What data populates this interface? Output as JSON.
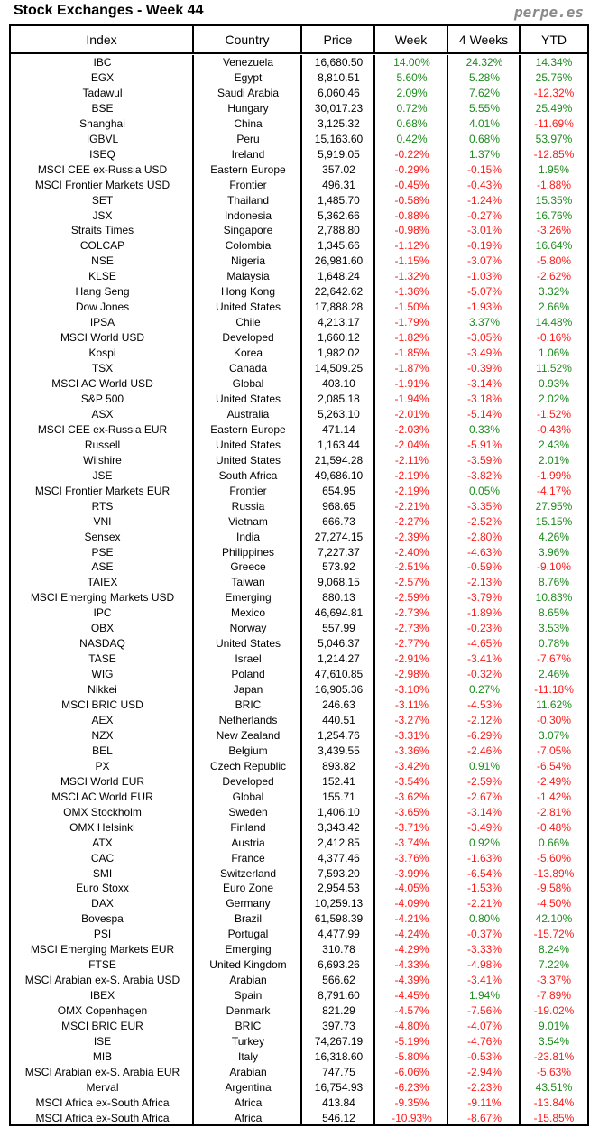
{
  "title": "Stock Exchanges - Week 44",
  "brand": "perpe.es",
  "colors": {
    "positive": "#1e8a1e",
    "negative": "#ff1a1a"
  },
  "headers": [
    "Index",
    "Country",
    "Price",
    "Week",
    "4 Weeks",
    "YTD"
  ],
  "rows": [
    [
      "IBC",
      "Venezuela",
      "16,680.50",
      "14.00%",
      "24.32%",
      "14.34%"
    ],
    [
      "EGX",
      "Egypt",
      "8,810.51",
      "5.60%",
      "5.28%",
      "25.76%"
    ],
    [
      "Tadawul",
      "Saudi Arabia",
      "6,060.46",
      "2.09%",
      "7.62%",
      "-12.32%"
    ],
    [
      "BSE",
      "Hungary",
      "30,017.23",
      "0.72%",
      "5.55%",
      "25.49%"
    ],
    [
      "Shanghai",
      "China",
      "3,125.32",
      "0.68%",
      "4.01%",
      "-11.69%"
    ],
    [
      "IGBVL",
      "Peru",
      "15,163.60",
      "0.42%",
      "0.68%",
      "53.97%"
    ],
    [
      "ISEQ",
      "Ireland",
      "5,919.05",
      "-0.22%",
      "1.37%",
      "-12.85%"
    ],
    [
      "MSCI CEE ex-Russia USD",
      "Eastern Europe",
      "357.02",
      "-0.29%",
      "-0.15%",
      "1.95%"
    ],
    [
      "MSCI Frontier Markets USD",
      "Frontier",
      "496.31",
      "-0.45%",
      "-0.43%",
      "-1.88%"
    ],
    [
      "SET",
      "Thailand",
      "1,485.70",
      "-0.58%",
      "-1.24%",
      "15.35%"
    ],
    [
      "JSX",
      "Indonesia",
      "5,362.66",
      "-0.88%",
      "-0.27%",
      "16.76%"
    ],
    [
      "Straits Times",
      "Singapore",
      "2,788.80",
      "-0.98%",
      "-3.01%",
      "-3.26%"
    ],
    [
      "COLCAP",
      "Colombia",
      "1,345.66",
      "-1.12%",
      "-0.19%",
      "16.64%"
    ],
    [
      "NSE",
      "Nigeria",
      "26,981.60",
      "-1.15%",
      "-3.07%",
      "-5.80%"
    ],
    [
      "KLSE",
      "Malaysia",
      "1,648.24",
      "-1.32%",
      "-1.03%",
      "-2.62%"
    ],
    [
      "Hang Seng",
      "Hong Kong",
      "22,642.62",
      "-1.36%",
      "-5.07%",
      "3.32%"
    ],
    [
      "Dow Jones",
      "United States",
      "17,888.28",
      "-1.50%",
      "-1.93%",
      "2.66%"
    ],
    [
      "IPSA",
      "Chile",
      "4,213.17",
      "-1.79%",
      "3.37%",
      "14.48%"
    ],
    [
      "MSCI World USD",
      "Developed",
      "1,660.12",
      "-1.82%",
      "-3.05%",
      "-0.16%"
    ],
    [
      "Kospi",
      "Korea",
      "1,982.02",
      "-1.85%",
      "-3.49%",
      "1.06%"
    ],
    [
      "TSX",
      "Canada",
      "14,509.25",
      "-1.87%",
      "-0.39%",
      "11.52%"
    ],
    [
      "MSCI AC World USD",
      "Global",
      "403.10",
      "-1.91%",
      "-3.14%",
      "0.93%"
    ],
    [
      "S&P 500",
      "United States",
      "2,085.18",
      "-1.94%",
      "-3.18%",
      "2.02%"
    ],
    [
      "ASX",
      "Australia",
      "5,263.10",
      "-2.01%",
      "-5.14%",
      "-1.52%"
    ],
    [
      "MSCI CEE ex-Russia EUR",
      "Eastern Europe",
      "471.14",
      "-2.03%",
      "0.33%",
      "-0.43%"
    ],
    [
      "Russell",
      "United States",
      "1,163.44",
      "-2.04%",
      "-5.91%",
      "2.43%"
    ],
    [
      "Wilshire",
      "United States",
      "21,594.28",
      "-2.11%",
      "-3.59%",
      "2.01%"
    ],
    [
      "JSE",
      "South Africa",
      "49,686.10",
      "-2.19%",
      "-3.82%",
      "-1.99%"
    ],
    [
      "MSCI Frontier Markets EUR",
      "Frontier",
      "654.95",
      "-2.19%",
      "0.05%",
      "-4.17%"
    ],
    [
      "RTS",
      "Russia",
      "968.65",
      "-2.21%",
      "-3.35%",
      "27.95%"
    ],
    [
      "VNI",
      "Vietnam",
      "666.73",
      "-2.27%",
      "-2.52%",
      "15.15%"
    ],
    [
      "Sensex",
      "India",
      "27,274.15",
      "-2.39%",
      "-2.80%",
      "4.26%"
    ],
    [
      "PSE",
      "Philippines",
      "7,227.37",
      "-2.40%",
      "-4.63%",
      "3.96%"
    ],
    [
      "ASE",
      "Greece",
      "573.92",
      "-2.51%",
      "-0.59%",
      "-9.10%"
    ],
    [
      "TAIEX",
      "Taiwan",
      "9,068.15",
      "-2.57%",
      "-2.13%",
      "8.76%"
    ],
    [
      "MSCI Emerging Markets USD",
      "Emerging",
      "880.13",
      "-2.59%",
      "-3.79%",
      "10.83%"
    ],
    [
      "IPC",
      "Mexico",
      "46,694.81",
      "-2.73%",
      "-1.89%",
      "8.65%"
    ],
    [
      "OBX",
      "Norway",
      "557.99",
      "-2.73%",
      "-0.23%",
      "3.53%"
    ],
    [
      "NASDAQ",
      "United States",
      "5,046.37",
      "-2.77%",
      "-4.65%",
      "0.78%"
    ],
    [
      "TASE",
      "Israel",
      "1,214.27",
      "-2.91%",
      "-3.41%",
      "-7.67%"
    ],
    [
      "WIG",
      "Poland",
      "47,610.85",
      "-2.98%",
      "-0.32%",
      "2.46%"
    ],
    [
      "Nikkei",
      "Japan",
      "16,905.36",
      "-3.10%",
      "0.27%",
      "-11.18%"
    ],
    [
      "MSCI BRIC USD",
      "BRIC",
      "246.63",
      "-3.11%",
      "-4.53%",
      "11.62%"
    ],
    [
      "AEX",
      "Netherlands",
      "440.51",
      "-3.27%",
      "-2.12%",
      "-0.30%"
    ],
    [
      "NZX",
      "New Zealand",
      "1,254.76",
      "-3.31%",
      "-6.29%",
      "3.07%"
    ],
    [
      "BEL",
      "Belgium",
      "3,439.55",
      "-3.36%",
      "-2.46%",
      "-7.05%"
    ],
    [
      "PX",
      "Czech Republic",
      "893.82",
      "-3.42%",
      "0.91%",
      "-6.54%"
    ],
    [
      "MSCI World EUR",
      "Developed",
      "152.41",
      "-3.54%",
      "-2.59%",
      "-2.49%"
    ],
    [
      "MSCI AC World EUR",
      "Global",
      "155.71",
      "-3.62%",
      "-2.67%",
      "-1.42%"
    ],
    [
      "OMX Stockholm",
      "Sweden",
      "1,406.10",
      "-3.65%",
      "-3.14%",
      "-2.81%"
    ],
    [
      "OMX Helsinki",
      "Finland",
      "3,343.42",
      "-3.71%",
      "-3.49%",
      "-0.48%"
    ],
    [
      "ATX",
      "Austria",
      "2,412.85",
      "-3.74%",
      "0.92%",
      "0.66%"
    ],
    [
      "CAC",
      "France",
      "4,377.46",
      "-3.76%",
      "-1.63%",
      "-5.60%"
    ],
    [
      "SMI",
      "Switzerland",
      "7,593.20",
      "-3.99%",
      "-6.54%",
      "-13.89%"
    ],
    [
      "Euro Stoxx",
      "Euro Zone",
      "2,954.53",
      "-4.05%",
      "-1.53%",
      "-9.58%"
    ],
    [
      "DAX",
      "Germany",
      "10,259.13",
      "-4.09%",
      "-2.21%",
      "-4.50%"
    ],
    [
      "Bovespa",
      "Brazil",
      "61,598.39",
      "-4.21%",
      "0.80%",
      "42.10%"
    ],
    [
      "PSI",
      "Portugal",
      "4,477.99",
      "-4.24%",
      "-0.37%",
      "-15.72%"
    ],
    [
      "MSCI Emerging Markets EUR",
      "Emerging",
      "310.78",
      "-4.29%",
      "-3.33%",
      "8.24%"
    ],
    [
      "FTSE",
      "United Kingdom",
      "6,693.26",
      "-4.33%",
      "-4.98%",
      "7.22%"
    ],
    [
      "MSCI Arabian ex-S. Arabia USD",
      "Arabian",
      "566.62",
      "-4.39%",
      "-3.41%",
      "-3.37%"
    ],
    [
      "IBEX",
      "Spain",
      "8,791.60",
      "-4.45%",
      "1.94%",
      "-7.89%"
    ],
    [
      "OMX Copenhagen",
      "Denmark",
      "821.29",
      "-4.57%",
      "-7.56%",
      "-19.02%"
    ],
    [
      "MSCI BRIC EUR",
      "BRIC",
      "397.73",
      "-4.80%",
      "-4.07%",
      "9.01%"
    ],
    [
      "ISE",
      "Turkey",
      "74,267.19",
      "-5.19%",
      "-4.76%",
      "3.54%"
    ],
    [
      "MIB",
      "Italy",
      "16,318.60",
      "-5.80%",
      "-0.53%",
      "-23.81%"
    ],
    [
      "MSCI Arabian ex-S. Arabia EUR",
      "Arabian",
      "747.75",
      "-6.06%",
      "-2.94%",
      "-5.63%"
    ],
    [
      "Merval",
      "Argentina",
      "16,754.93",
      "-6.23%",
      "-2.23%",
      "43.51%"
    ],
    [
      "MSCI Africa ex-South Africa",
      "Africa",
      "413.84",
      "-9.35%",
      "-9.11%",
      "-13.84%"
    ],
    [
      "MSCI Africa ex-South Africa",
      "Africa",
      "546.12",
      "-10.93%",
      "-8.67%",
      "-15.85%"
    ]
  ]
}
